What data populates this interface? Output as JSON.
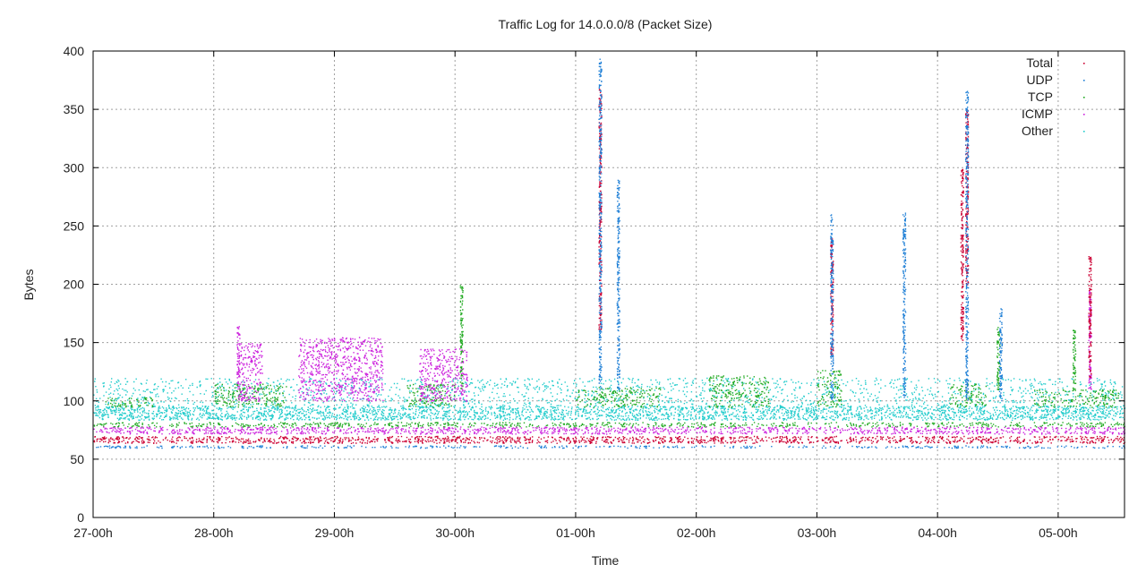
{
  "chart_data": {
    "type": "scatter",
    "title": "Traffic Log for 14.0.0.0/8 (Packet Size)",
    "xlabel": "Time",
    "ylabel": "Bytes",
    "ylim": [
      0,
      400
    ],
    "yticks": [
      0,
      50,
      100,
      150,
      200,
      250,
      300,
      350,
      400
    ],
    "xlim": [
      0,
      8.55
    ],
    "xticks": [
      {
        "v": 0,
        "label": "27-00h"
      },
      {
        "v": 1,
        "label": "28-00h"
      },
      {
        "v": 2,
        "label": "29-00h"
      },
      {
        "v": 3,
        "label": "30-00h"
      },
      {
        "v": 4,
        "label": "01-00h"
      },
      {
        "v": 5,
        "label": "02-00h"
      },
      {
        "v": 6,
        "label": "03-00h"
      },
      {
        "v": 7,
        "label": "04-00h"
      },
      {
        "v": 8,
        "label": "05-00h"
      }
    ],
    "grid": true,
    "legend_position": "top-right",
    "series": [
      {
        "name": "Total",
        "color": "#cc0033",
        "bands": [
          [
            0,
            8.55,
            64,
            70,
            0.9
          ]
        ],
        "spikes": [
          [
            4.2,
            160,
            368
          ],
          [
            6.12,
            140,
            240
          ],
          [
            7.2,
            150,
            300
          ],
          [
            7.24,
            200,
            350
          ],
          [
            8.26,
            120,
            225
          ]
        ]
      },
      {
        "name": "UDP",
        "color": "#1e7fd6",
        "bands": [
          [
            0,
            8.55,
            60,
            62,
            0.8
          ]
        ],
        "spikes": [
          [
            4.2,
            110,
            395
          ],
          [
            4.35,
            110,
            290
          ],
          [
            6.12,
            100,
            260
          ],
          [
            6.72,
            100,
            262
          ],
          [
            7.24,
            100,
            368
          ],
          [
            7.52,
            100,
            180
          ]
        ]
      },
      {
        "name": "TCP",
        "color": "#22aa22",
        "bands": [
          [
            0,
            8.55,
            78,
            82,
            0.7
          ],
          [
            0.1,
            0.5,
            95,
            103,
            0.55
          ],
          [
            1.0,
            1.6,
            95,
            115,
            0.55
          ],
          [
            2.6,
            3.0,
            95,
            115,
            0.5
          ],
          [
            4.0,
            4.7,
            95,
            112,
            0.5
          ],
          [
            5.1,
            5.6,
            95,
            122,
            0.5
          ],
          [
            6.0,
            6.2,
            95,
            127,
            0.5
          ],
          [
            7.1,
            7.4,
            95,
            115,
            0.5
          ],
          [
            7.8,
            8.5,
            95,
            110,
            0.5
          ]
        ],
        "spikes": [
          [
            3.05,
            110,
            200
          ],
          [
            7.5,
            110,
            165
          ],
          [
            8.13,
            110,
            165
          ]
        ]
      },
      {
        "name": "ICMP",
        "color": "#cc22dd",
        "bands": [
          [
            0,
            8.55,
            72,
            78,
            0.85
          ],
          [
            1.2,
            1.4,
            100,
            150,
            0.6
          ],
          [
            1.7,
            2.4,
            100,
            155,
            0.6
          ],
          [
            2.7,
            3.1,
            100,
            145,
            0.6
          ]
        ],
        "spikes": [
          [
            1.2,
            110,
            165
          ],
          [
            8.26,
            110,
            195
          ]
        ]
      },
      {
        "name": "Other",
        "color": "#22cccc",
        "bands": [
          [
            0,
            8.55,
            84,
            96,
            0.95
          ],
          [
            0,
            8.55,
            96,
            120,
            0.25
          ]
        ],
        "spikes": []
      }
    ]
  }
}
